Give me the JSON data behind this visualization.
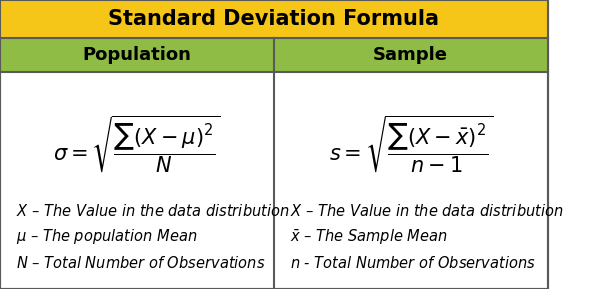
{
  "title": "Standard Deviation Formula",
  "title_bg": "#F5C518",
  "header_bg": "#8FBC45",
  "header_left": "Population",
  "header_right": "Sample",
  "body_bg": "#FFFFFF",
  "border_color": "#5A5A5A",
  "text_color": "#000000",
  "formula_left": "$\\sigma = \\sqrt{\\dfrac{\\sum(X-\\mu)^2}{N}}$",
  "formula_right": "$s = \\sqrt{\\dfrac{\\sum(X-\\bar{x})^2}{n-1}}$",
  "desc_left": [
    "$X$ – The Value in the data distribution",
    "$\\mu$ – The population Mean",
    "$N$ – Total Number of Observations"
  ],
  "desc_right": [
    "$X$ – The Value in the data distribution",
    "$\\bar{x}$ – The Sample Mean",
    "$n$ - Total Number of Observations"
  ],
  "title_fontsize": 15,
  "header_fontsize": 13,
  "formula_fontsize": 15,
  "desc_fontsize": 10.5
}
